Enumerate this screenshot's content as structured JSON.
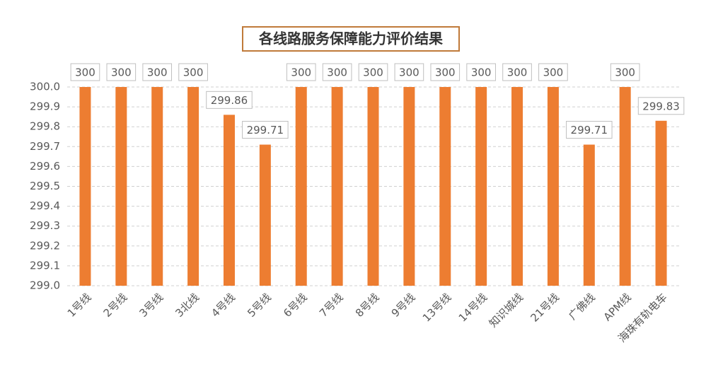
{
  "chart_data": {
    "type": "bar",
    "title": "各线路服务保障能力评价结果",
    "categories": [
      "1号线",
      "2号线",
      "3号线",
      "3北线",
      "4号线",
      "5号线",
      "6号线",
      "7号线",
      "8号线",
      "9号线",
      "13号线",
      "14号线",
      "知识城线",
      "21号线",
      "广佛线",
      "APM线",
      "海珠有轨电车"
    ],
    "values": [
      300,
      300,
      300,
      300,
      299.86,
      299.71,
      300,
      300,
      300,
      300,
      300,
      300,
      300,
      300,
      299.71,
      300,
      299.83
    ],
    "color": "#ed7d31",
    "ylim": [
      299.0,
      300.0
    ],
    "yticks": [
      {
        "value": 299.0,
        "label": "299.0"
      },
      299.1,
      299.2,
      299.3,
      299.4,
      299.5,
      299.6,
      299.7,
      299.8,
      299.9,
      {
        "value": 300.0,
        "label": "300.0"
      }
    ],
    "grid": true
  }
}
